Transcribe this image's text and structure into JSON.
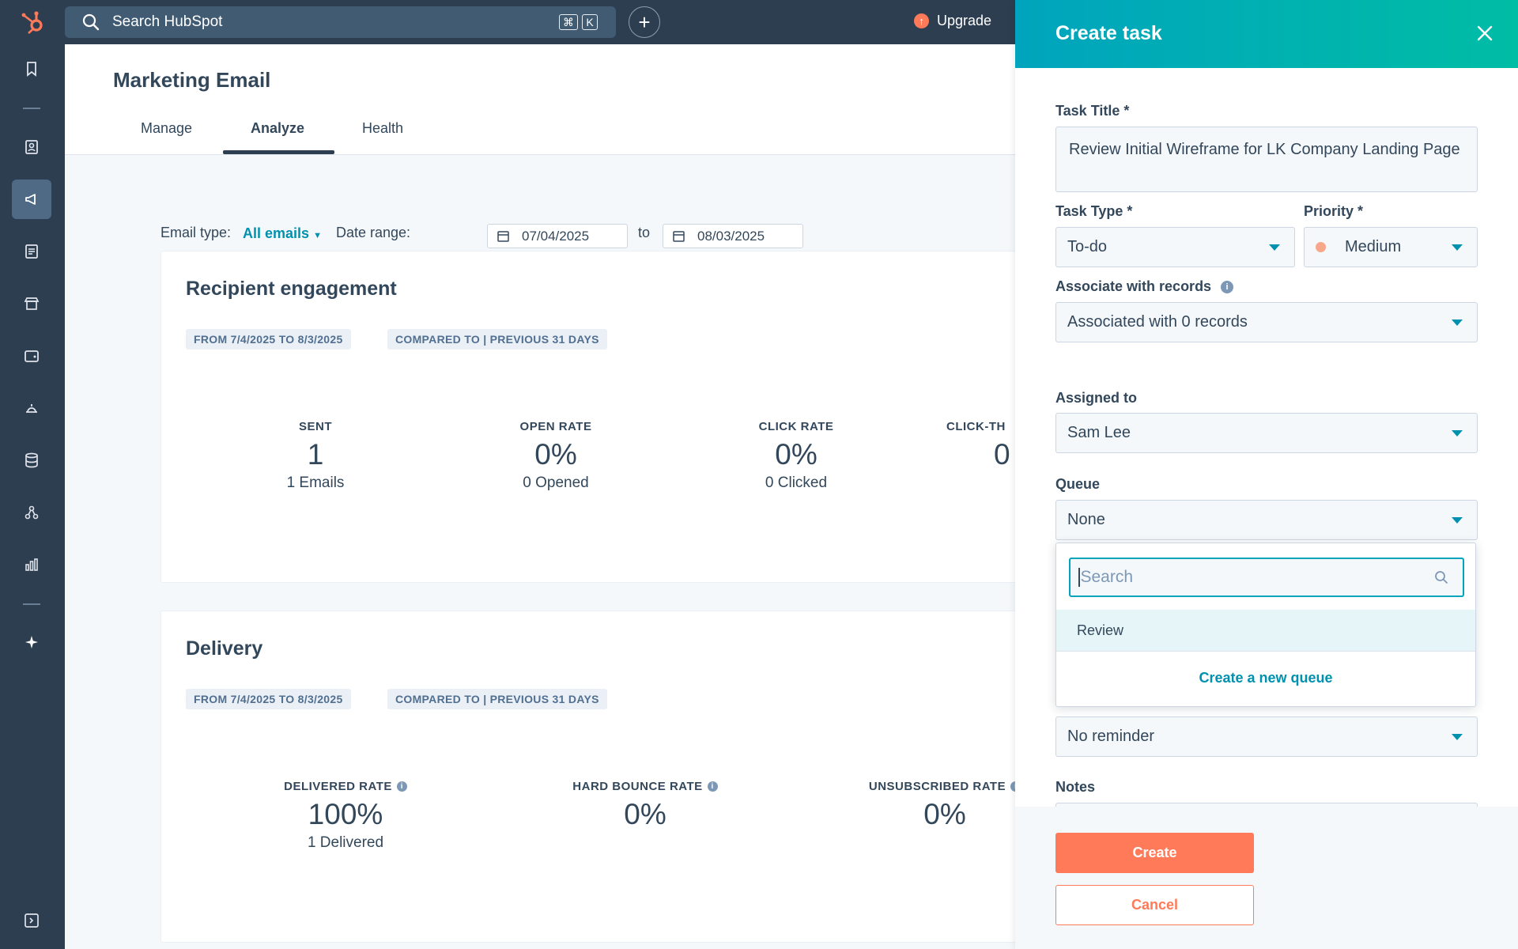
{
  "topbar": {
    "search_placeholder": "Search HubSpot",
    "shortcut_cmd": "⌘",
    "shortcut_key": "K",
    "upgrade_label": "Upgrade"
  },
  "header": {
    "title": "Marketing Email",
    "tabs": [
      {
        "label": "Manage"
      },
      {
        "label": "Analyze"
      },
      {
        "label": "Health"
      }
    ]
  },
  "filters": {
    "email_type_label": "Email type:",
    "email_type_value": "All emails",
    "date_range_label": "Date range:",
    "start_date": "07/04/2025",
    "to_label": "to",
    "end_date": "08/03/2025"
  },
  "engagement": {
    "title": "Recipient engagement",
    "from_pill": "FROM 7/4/2025 TO 8/3/2025",
    "compare_pill": "COMPARED TO | PREVIOUS 31 DAYS",
    "stats": [
      {
        "label": "SENT",
        "value": "1",
        "sub": "1 Emails"
      },
      {
        "label": "OPEN RATE",
        "value": "0%",
        "sub": "0 Opened"
      },
      {
        "label": "CLICK RATE",
        "value": "0%",
        "sub": "0 Clicked"
      },
      {
        "label": "CLICK-TH",
        "value": "0",
        "sub": ""
      }
    ]
  },
  "delivery": {
    "title": "Delivery",
    "from_pill": "FROM 7/4/2025 TO 8/3/2025",
    "compare_pill": "COMPARED TO | PREVIOUS 31 DAYS",
    "stats": [
      {
        "label": "DELIVERED RATE",
        "value": "100%",
        "sub": "1 Delivered"
      },
      {
        "label": "HARD BOUNCE RATE",
        "value": "0%",
        "sub": ""
      },
      {
        "label": "UNSUBSCRIBED RATE",
        "value": "0%",
        "sub": ""
      }
    ]
  },
  "task_panel": {
    "title": "Create task",
    "task_title_label": "Task Title *",
    "task_title_value": "Review Initial Wireframe for LK Company Landing Page",
    "task_type_label": "Task Type *",
    "task_type_value": "To-do",
    "priority_label": "Priority *",
    "priority_value": "Medium",
    "priority_color": "#f8a78a",
    "associate_label": "Associate with records",
    "associate_value": "Associated with 0 records",
    "assigned_label": "Assigned to",
    "assigned_value": "Sam Lee",
    "queue_label": "Queue",
    "queue_value": "None",
    "queue_search_placeholder": "Search",
    "queue_options": [
      "Review"
    ],
    "create_queue_label": "Create a new queue",
    "reminder_value": "No reminder",
    "notes_label": "Notes",
    "create_label": "Create",
    "cancel_label": "Cancel"
  },
  "colors": {
    "nav_bg": "#2d3e50",
    "accent_teal": "#00a4bd",
    "accent_orange": "#ff7a59",
    "link": "#0091ae"
  }
}
